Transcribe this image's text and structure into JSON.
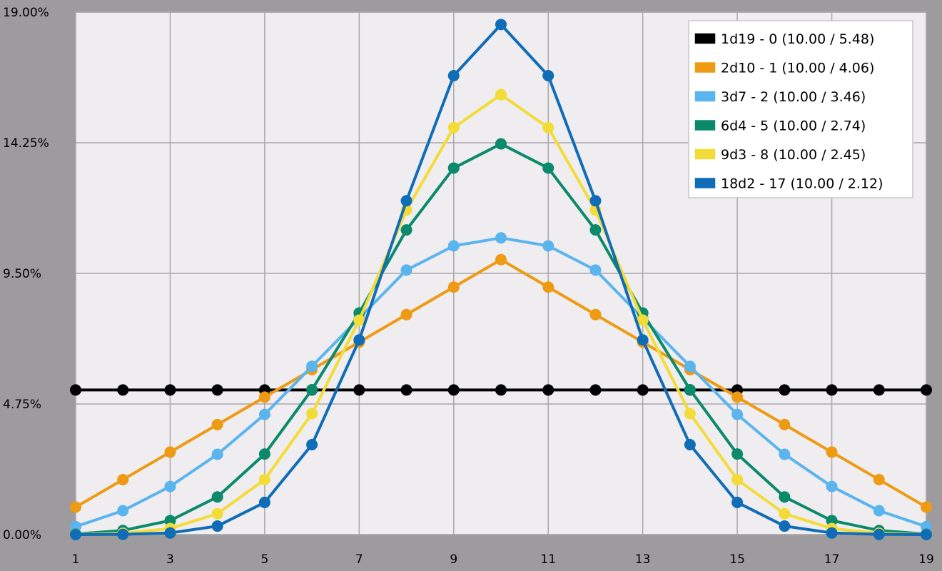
{
  "chart_data": {
    "type": "line",
    "title": "",
    "xlabel": "",
    "ylabel": "",
    "xlim": [
      1,
      19
    ],
    "ylim": [
      0,
      19
    ],
    "x_ticks": [
      1,
      3,
      5,
      7,
      9,
      11,
      13,
      15,
      17,
      19
    ],
    "x_tick_labels": [
      "1",
      "3",
      "5",
      "7",
      "9",
      "11",
      "13",
      "15",
      "17",
      "19"
    ],
    "y_ticks": [
      0,
      4.75,
      9.5,
      14.25,
      19
    ],
    "y_tick_labels": [
      "0.00%",
      "4.75%",
      "9.50%",
      "14.25%",
      "19.00%"
    ],
    "grid": true,
    "legend_position": "top-right",
    "x": [
      1,
      2,
      3,
      4,
      5,
      6,
      7,
      8,
      9,
      10,
      11,
      12,
      13,
      14,
      15,
      16,
      17,
      18,
      19
    ],
    "series": [
      {
        "name": "1d19 - 0 (10.00 / 5.48)",
        "color": "#000000",
        "values": [
          5.26,
          5.26,
          5.26,
          5.26,
          5.26,
          5.26,
          5.26,
          5.26,
          5.26,
          5.26,
          5.26,
          5.26,
          5.26,
          5.26,
          5.26,
          5.26,
          5.26,
          5.26,
          5.26
        ]
      },
      {
        "name": "2d10 - 1 (10.00 / 4.06)",
        "color": "#ee9a12",
        "values": [
          1.0,
          2.0,
          3.0,
          4.0,
          5.0,
          6.0,
          7.0,
          8.0,
          9.0,
          10.0,
          9.0,
          8.0,
          7.0,
          6.0,
          5.0,
          4.0,
          3.0,
          2.0,
          1.0
        ]
      },
      {
        "name": "3d7 - 2 (10.00 / 3.46)",
        "color": "#5ab4ee",
        "values": [
          0.29,
          0.87,
          1.75,
          2.92,
          4.37,
          6.12,
          7.87,
          9.62,
          10.5,
          10.79,
          10.5,
          9.62,
          7.87,
          6.12,
          4.37,
          2.92,
          1.75,
          0.87,
          0.29
        ]
      },
      {
        "name": "6d4 - 5 (10.00 / 2.74)",
        "color": "#0a8a6a",
        "values": [
          0.02,
          0.15,
          0.51,
          1.37,
          2.93,
          5.27,
          8.06,
          11.08,
          13.33,
          14.21,
          13.33,
          11.08,
          8.06,
          5.27,
          2.93,
          1.37,
          0.51,
          0.15,
          0.02
        ]
      },
      {
        "name": "9d3 - 8 (10.00 / 2.45)",
        "color": "#f3dc37",
        "values": [
          0.005,
          0.05,
          0.22,
          0.76,
          2.0,
          4.4,
          7.8,
          11.8,
          14.8,
          16.0,
          14.8,
          11.8,
          7.8,
          4.4,
          2.0,
          0.76,
          0.22,
          0.05,
          0.005
        ]
      },
      {
        "name": "18d2 - 17 (10.00 / 2.12)",
        "color": "#0f6cb6",
        "values": [
          0.0,
          0.01,
          0.06,
          0.31,
          1.17,
          3.27,
          7.08,
          12.14,
          16.69,
          18.55,
          16.69,
          12.14,
          7.08,
          3.27,
          1.17,
          0.31,
          0.06,
          0.01,
          0.0
        ]
      }
    ]
  }
}
